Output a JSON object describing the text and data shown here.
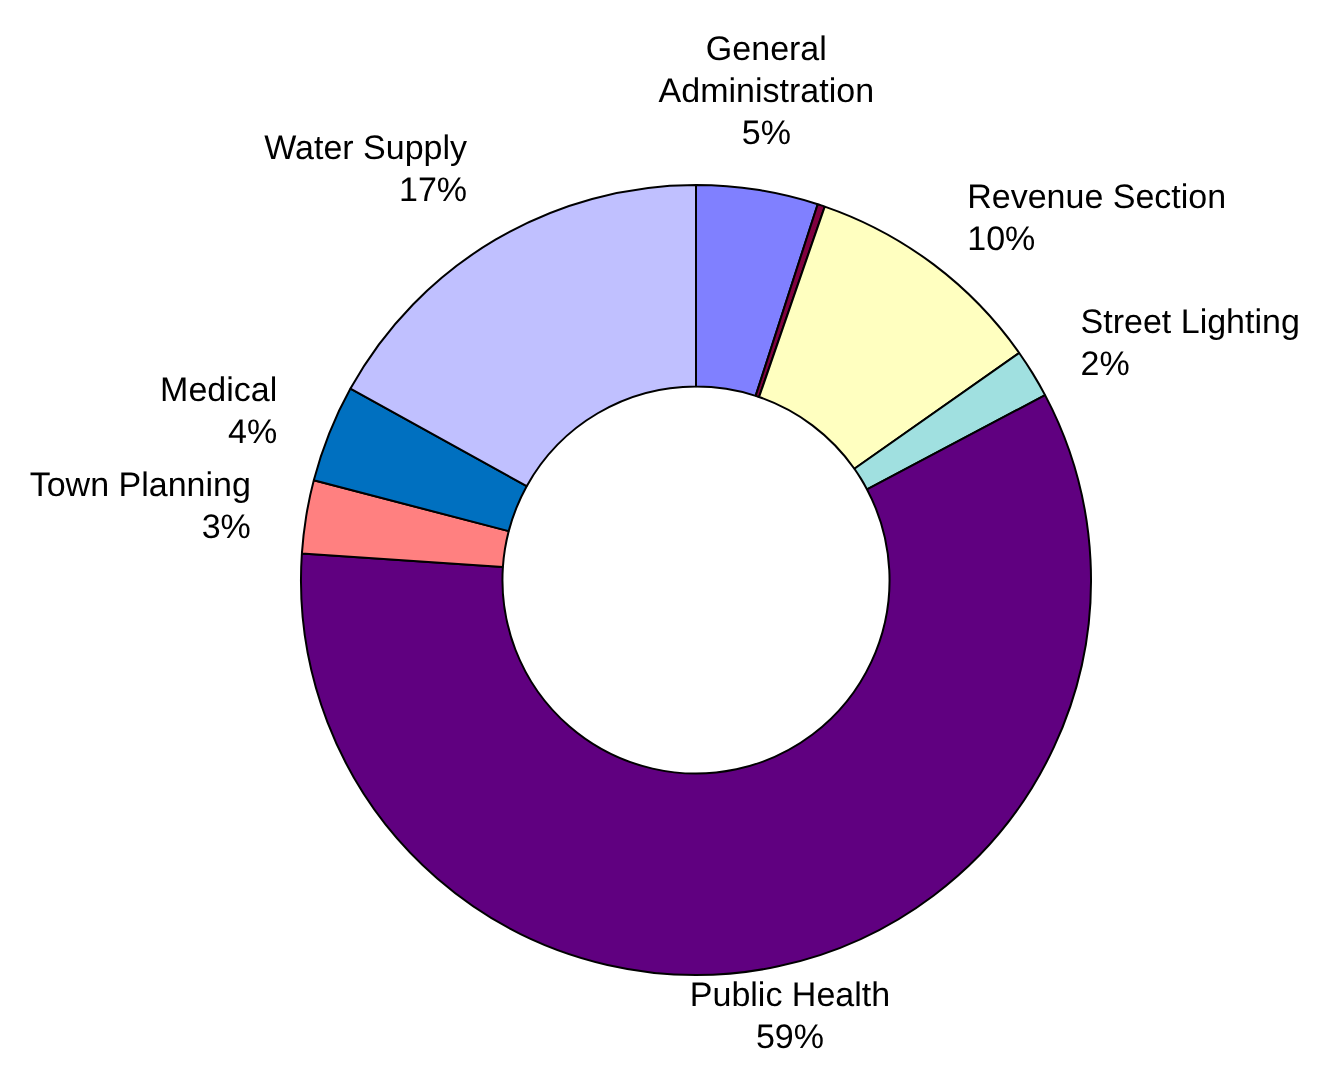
{
  "chart_data": {
    "type": "donut",
    "categories": [
      "General Administration",
      null,
      "Revenue Section",
      "Street Lighting",
      "Public Health",
      "Town Planning",
      "Medical",
      "Water Supply"
    ],
    "values": [
      5,
      0.3,
      10,
      2,
      59,
      3,
      4,
      17
    ],
    "colors": [
      "#8080ff",
      "#800040",
      "#ffffc0",
      "#a0e0e0",
      "#600080",
      "#ff8080",
      "#0070c0",
      "#c0c0ff"
    ],
    "value_labels": [
      "5%",
      null,
      "10%",
      "2%",
      "59%",
      "3%",
      "4%",
      "17%"
    ],
    "legend": false
  }
}
